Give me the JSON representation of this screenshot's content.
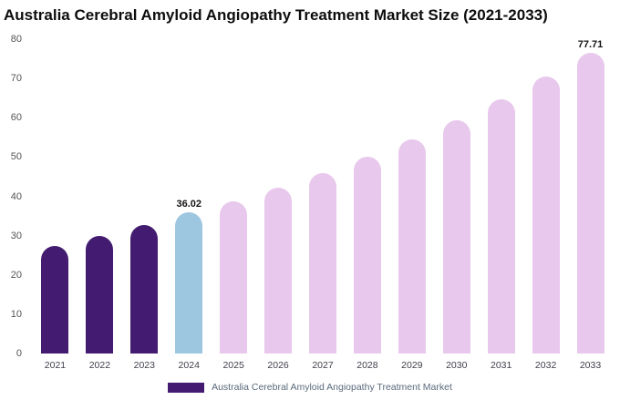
{
  "title": "Australia Cerebral Amyloid Angiopathy Treatment Market Size (2021-2033)",
  "legend": {
    "label": "Australia Cerebral Amyloid Angiopathy Treatment Market",
    "swatch_color": "#431c71"
  },
  "colors": {
    "historical_bar": "#431c71",
    "current_year_bar": "#9dc6e0",
    "forecast_bar": "#e8c8ec",
    "background": "#ffffff"
  },
  "chart_data": {
    "type": "bar",
    "title": "Australia Cerebral Amyloid Angiopathy Treatment Market Size (2021-2033)",
    "categories": [
      "2021",
      "2022",
      "2023",
      "2024",
      "2025",
      "2026",
      "2027",
      "2028",
      "2029",
      "2030",
      "2031",
      "2032",
      "2033"
    ],
    "values": [
      27.3,
      29.9,
      32.6,
      36.02,
      38.7,
      42.1,
      45.9,
      50.0,
      54.5,
      59.4,
      64.7,
      70.5,
      77.71
    ],
    "point_labels": [
      "",
      "",
      "",
      "36.02",
      "",
      "",
      "",
      "",
      "",
      "",
      "",
      "",
      "77.71"
    ],
    "bar_colors": [
      "#431c71",
      "#431c71",
      "#431c71",
      "#9dc6e0",
      "#e8c8ec",
      "#e8c8ec",
      "#e8c8ec",
      "#e8c8ec",
      "#e8c8ec",
      "#e8c8ec",
      "#e8c8ec",
      "#e8c8ec",
      "#e8c8ec"
    ],
    "xlabel": "",
    "ylabel": "",
    "ylim": [
      0,
      80
    ],
    "yticks": [
      0,
      10,
      20,
      30,
      40,
      50,
      60,
      70,
      80
    ],
    "grid": false,
    "legend_position": "bottom",
    "legend_entries": [
      "Australia Cerebral Amyloid Angiopathy Treatment Market"
    ]
  }
}
